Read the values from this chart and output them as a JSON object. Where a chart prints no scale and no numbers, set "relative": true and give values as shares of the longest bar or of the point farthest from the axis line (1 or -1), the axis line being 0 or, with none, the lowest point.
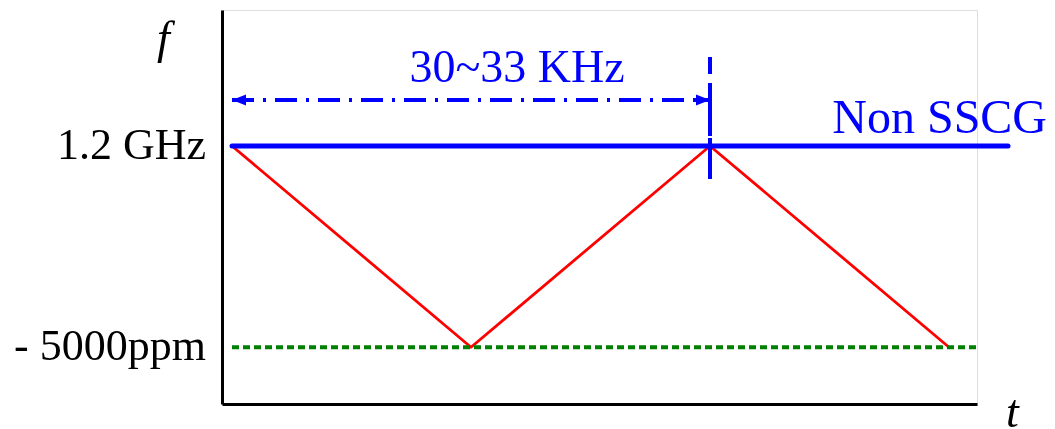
{
  "chart_data": {
    "type": "line",
    "relative": true,
    "xlabel": "t",
    "ylabel": "f",
    "categories": [
      null,
      null,
      null,
      null
    ],
    "series": [
      {
        "color": "#ff0000",
        "values": [
          1,
          0.22,
          1,
          0.22
        ]
      }
    ],
    "ref_lines": [
      {
        "axis": "y",
        "value": 1,
        "label": "Non SSCG",
        "color": "#0000ff",
        "line_style": "solid"
      },
      {
        "axis": "y",
        "value": 0.22,
        "color": "#008000",
        "line_style": "dotted"
      }
    ],
    "annotations": [
      "30~33 KHz",
      "1.2 GHz",
      "- 5000ppm"
    ],
    "grid": false,
    "marker": "none",
    "line_style": "solid"
  }
}
